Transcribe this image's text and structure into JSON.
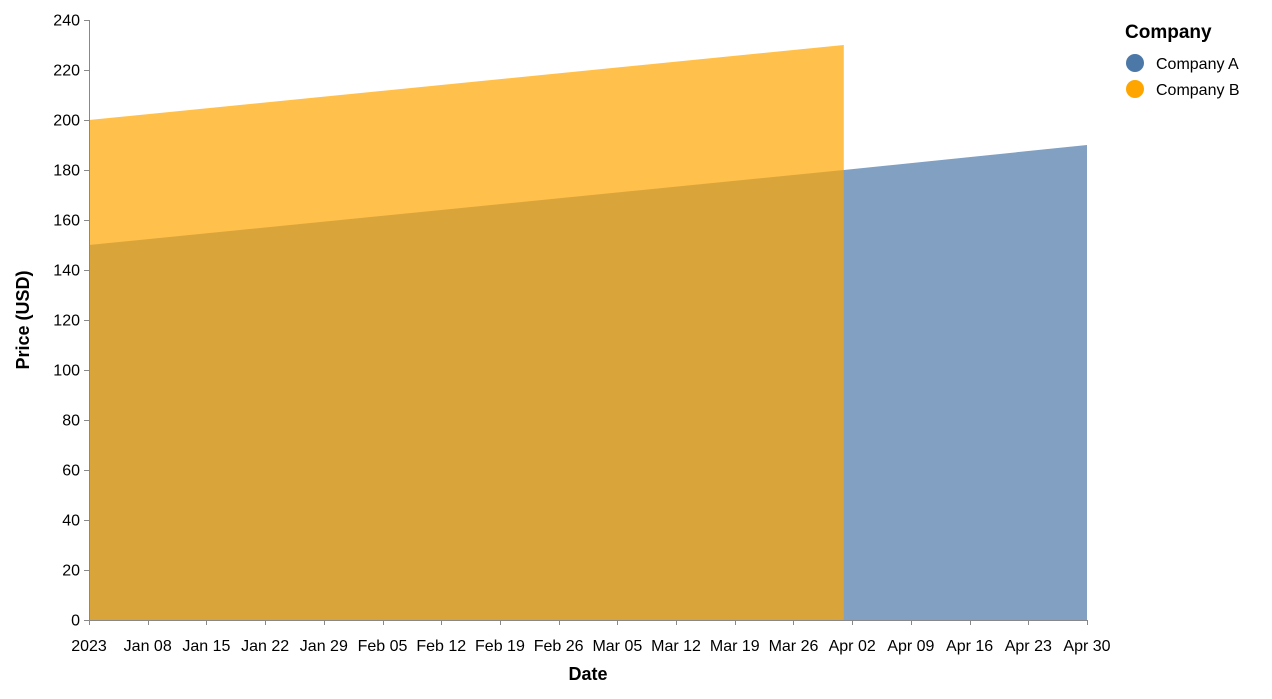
{
  "chart_data": {
    "type": "area",
    "xlabel": "Date",
    "ylabel": "Price (USD)",
    "ylim": [
      0,
      240
    ],
    "y_ticks": [
      0,
      20,
      40,
      60,
      80,
      100,
      120,
      140,
      160,
      180,
      200,
      220,
      240
    ],
    "x_domain": [
      "2023-01-01",
      "2023-04-30"
    ],
    "x_ticks": [
      {
        "date": "2023-01-01",
        "label": "2023"
      },
      {
        "date": "2023-01-08",
        "label": "Jan 08"
      },
      {
        "date": "2023-01-15",
        "label": "Jan 15"
      },
      {
        "date": "2023-01-22",
        "label": "Jan 22"
      },
      {
        "date": "2023-01-29",
        "label": "Jan 29"
      },
      {
        "date": "2023-02-05",
        "label": "Feb 05"
      },
      {
        "date": "2023-02-12",
        "label": "Feb 12"
      },
      {
        "date": "2023-02-19",
        "label": "Feb 19"
      },
      {
        "date": "2023-02-26",
        "label": "Feb 26"
      },
      {
        "date": "2023-03-05",
        "label": "Mar 05"
      },
      {
        "date": "2023-03-12",
        "label": "Mar 12"
      },
      {
        "date": "2023-03-19",
        "label": "Mar 19"
      },
      {
        "date": "2023-03-26",
        "label": "Mar 26"
      },
      {
        "date": "2023-04-02",
        "label": "Apr 02"
      },
      {
        "date": "2023-04-09",
        "label": "Apr 09"
      },
      {
        "date": "2023-04-16",
        "label": "Apr 16"
      },
      {
        "date": "2023-04-23",
        "label": "Apr 23"
      },
      {
        "date": "2023-04-30",
        "label": "Apr 30"
      }
    ],
    "legend": {
      "title": "Company",
      "position": "top-right"
    },
    "grid": false,
    "series": [
      {
        "name": "Company A",
        "color": "#4c78a8",
        "points": [
          {
            "x": "2023-01-01",
            "y": 150
          },
          {
            "x": "2023-04-01",
            "y": 180
          },
          {
            "x": "2023-04-30",
            "y": 190
          }
        ]
      },
      {
        "name": "Company B",
        "color": "#ffa500",
        "points": [
          {
            "x": "2023-01-01",
            "y": 200
          },
          {
            "x": "2023-04-01",
            "y": 230
          }
        ]
      }
    ]
  }
}
